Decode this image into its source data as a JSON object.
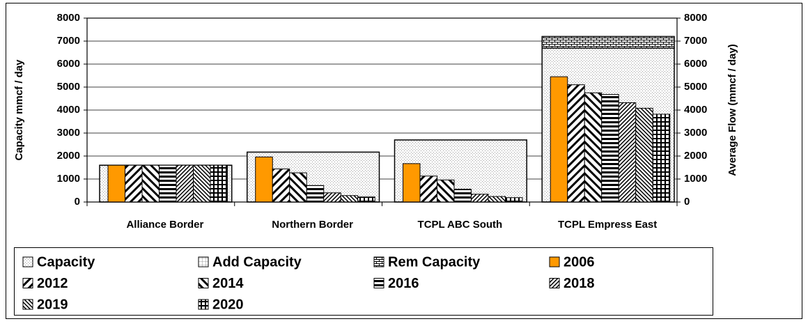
{
  "chart_data": {
    "type": "bar",
    "categories": [
      "Alliance Border",
      "Northern Border",
      "TCPL ABC South",
      "TCPL Empress East"
    ],
    "y_label": "Capacity mmcf / day",
    "y2_label": "Average Flow (mmcf / day)",
    "ylim": [
      0,
      8000
    ],
    "yticks": [
      0,
      1000,
      2000,
      3000,
      4000,
      5000,
      6000,
      7000,
      8000
    ],
    "y2lim": [
      0,
      8000
    ],
    "y2ticks": [
      0,
      1000,
      2000,
      3000,
      4000,
      5000,
      6000,
      7000,
      8000
    ],
    "grid": true,
    "series": [
      {
        "name": "Capacity",
        "color": "#ffffff",
        "pattern": "dots",
        "stack": "capacity",
        "values": [
          1600,
          2170,
          2700,
          6700
        ]
      },
      {
        "name": "Add Capacity",
        "color": "#ffffff",
        "pattern": "fine-grid",
        "stack": "capacity",
        "values": [
          0,
          0,
          0,
          0
        ]
      },
      {
        "name": "Rem Capacity",
        "color": "#ffffff",
        "pattern": "brick",
        "stack": "capacity",
        "values": [
          0,
          0,
          0,
          500
        ]
      },
      {
        "name": "2006",
        "color": "#ff9900",
        "pattern": "solid",
        "axis": "y2",
        "values": [
          1600,
          1960,
          1670,
          5450
        ]
      },
      {
        "name": "2012",
        "color": "#ffffff",
        "pattern": "wide-back-diag",
        "axis": "y2",
        "values": [
          1600,
          1440,
          1130,
          5100
        ]
      },
      {
        "name": "2014",
        "color": "#ffffff",
        "pattern": "wide-fwd-diag",
        "axis": "y2",
        "values": [
          1600,
          1270,
          960,
          4750
        ]
      },
      {
        "name": "2016",
        "color": "#ffffff",
        "pattern": "horizontal",
        "axis": "y2",
        "values": [
          1600,
          720,
          560,
          4680
        ]
      },
      {
        "name": "2018",
        "color": "#ffffff",
        "pattern": "dense-back-diag",
        "axis": "y2",
        "values": [
          1600,
          400,
          340,
          4320
        ]
      },
      {
        "name": "2019",
        "color": "#ffffff",
        "pattern": "dense-fwd-diag",
        "axis": "y2",
        "values": [
          1600,
          280,
          240,
          4080
        ]
      },
      {
        "name": "2020",
        "color": "#ffffff",
        "pattern": "grid",
        "axis": "y2",
        "values": [
          1600,
          220,
          190,
          3820
        ]
      }
    ]
  }
}
